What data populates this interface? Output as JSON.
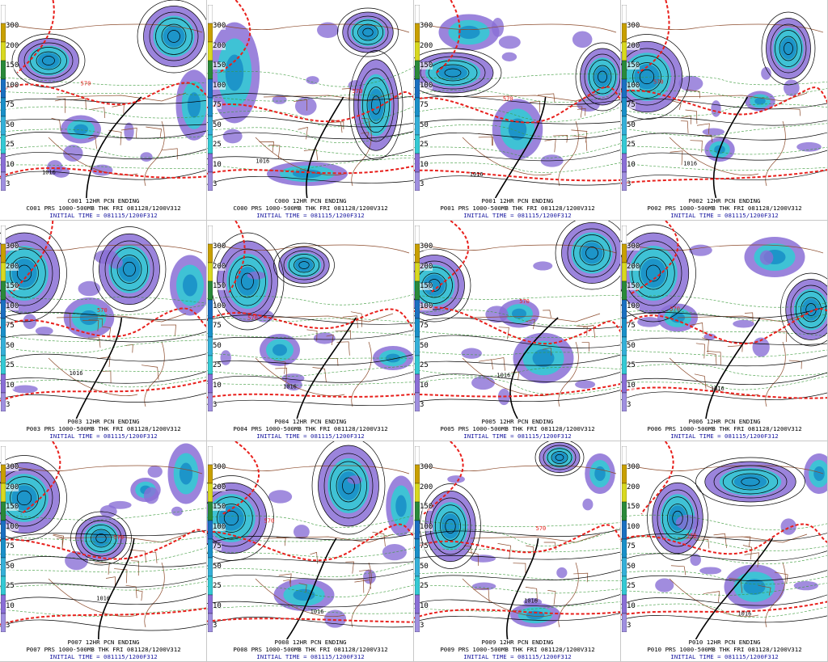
{
  "colors": {
    "precip_light": "#8a6fd6",
    "precip_mid": "#35c9d4",
    "precip_heavy": "#1a90c8",
    "precip_max": "#2a8a3a",
    "thickness": "#e8201c",
    "isobar": "#000000",
    "border": "#8b4a2a",
    "thickness_dash": "#3b9a3b",
    "initial_time_text": "#1a1aa0"
  },
  "colorbar_ticks": [
    "300",
    "200",
    "150",
    "100",
    "75",
    "50",
    "25",
    "10",
    "3"
  ],
  "panels": [
    {
      "id": "C001",
      "title": "C001  12HR PCN ENDING",
      "desc": "C001 PRS 1000-500MB THK FRI 081128/1200V312",
      "init": "INITIAL TIME = 081115/1200F312",
      "iso": "1016",
      "thk": "570"
    },
    {
      "id": "C000",
      "title": "C000  12HR PCN ENDING",
      "desc": "C000 PRS 1000-500MB THK FRI 081128/1200V312",
      "init": "INITIAL TIME = 081115/1200F312",
      "iso": "1016",
      "thk": "570"
    },
    {
      "id": "P001",
      "title": "P001  12HR PCN ENDING",
      "desc": "P001 PRS 1000-500MB THK FRI 081128/1200V312",
      "init": "INITIAL TIME = 081115/1200F312",
      "iso": "1016",
      "thk": "570"
    },
    {
      "id": "P002",
      "title": "P002  12HR PCN ENDING",
      "desc": "P002 PRS 1000-500MB THK FRI 081128/1200V312",
      "init": "INITIAL TIME = 081115/1200F312",
      "iso": "1016",
      "thk": "570"
    },
    {
      "id": "P003",
      "title": "P003  12HR PCN ENDING",
      "desc": "P003 PRS 1000-500MB THK FRI 081128/1200V312",
      "init": "INITIAL TIME = 081115/1200F312",
      "iso": "1016",
      "thk": "570"
    },
    {
      "id": "P004",
      "title": "P004  12HR PCN ENDING",
      "desc": "P004 PRS 1000-500MB THK FRI 081128/1200V312",
      "init": "INITIAL TIME = 081115/1200F312",
      "iso": "1016",
      "thk": "570"
    },
    {
      "id": "P005",
      "title": "P005  12HR PCN ENDING",
      "desc": "P005 PRS 1000-500MB THK FRI 081128/1200V312",
      "init": "INITIAL TIME = 081115/1200F312",
      "iso": "1016",
      "thk": "570"
    },
    {
      "id": "P006",
      "title": "P006  12HR PCN ENDING",
      "desc": "P006 PRS 1000-500MB THK FRI 081128/1200V312",
      "init": "INITIAL TIME = 081115/1200F312",
      "iso": "1016",
      "thk": "570"
    },
    {
      "id": "P007",
      "title": "P007  12HR PCN ENDING",
      "desc": "P007 PRS 1000-500MB THK FRI 081128/1200V312",
      "init": "INITIAL TIME = 081115/1200F312",
      "iso": "1016",
      "thk": "570"
    },
    {
      "id": "P008",
      "title": "P008  12HR PCN ENDING",
      "desc": "P008 PRS 1000-500MB THK FRI 081128/1200V312",
      "init": "INITIAL TIME = 081115/1200F312",
      "iso": "1016",
      "thk": "570"
    },
    {
      "id": "P009",
      "title": "P009  12HR PCN ENDING",
      "desc": "P009 PRS 1000-500MB THK FRI 081128/1200V312",
      "init": "INITIAL TIME = 081115/1200F312",
      "iso": "1016",
      "thk": "570"
    },
    {
      "id": "P010",
      "title": "P010  12HR PCN ENDING",
      "desc": "P010 PRS 1000-500MB THK FRI 081128/1200V312",
      "init": "INITIAL TIME = 081115/1200F312",
      "iso": "1016",
      "thk": "570"
    }
  ]
}
